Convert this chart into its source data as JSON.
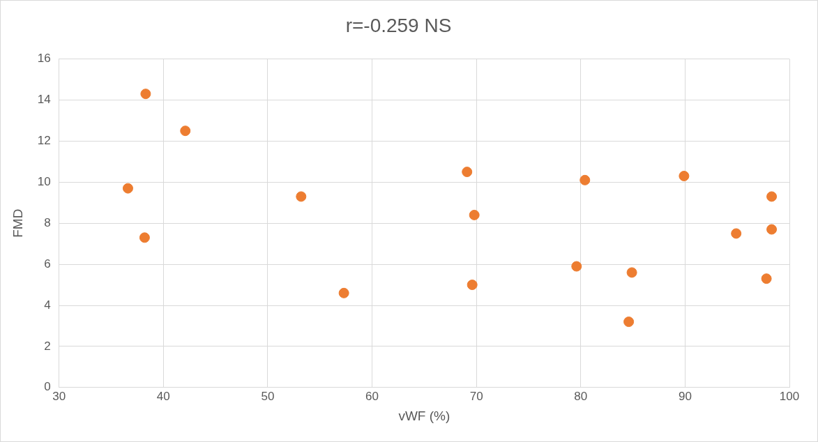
{
  "chart_data": {
    "type": "scatter",
    "title": "r=-0.259 NS",
    "xlabel": "vWF (%)",
    "ylabel": "FMD",
    "x": [
      38.3,
      42.1,
      36.6,
      38.2,
      53.2,
      57.3,
      69.1,
      69.8,
      69.6,
      79.6,
      80.4,
      84.9,
      84.6,
      89.9,
      94.9,
      98.3,
      98.3,
      97.8
    ],
    "series": [
      {
        "color": "#ed7d31",
        "values": [
          14.3,
          12.5,
          9.7,
          7.3,
          9.3,
          4.6,
          10.5,
          8.4,
          5.0,
          5.9,
          10.1,
          5.6,
          3.2,
          10.3,
          7.5,
          9.3,
          7.7,
          5.3
        ]
      }
    ],
    "xlim": [
      30,
      100
    ],
    "xticks": [
      30,
      40,
      50,
      60,
      70,
      80,
      90,
      100
    ],
    "ylim": [
      0,
      16
    ],
    "yticks": [
      0,
      2,
      4,
      6,
      8,
      10,
      12,
      14,
      16
    ],
    "grid": true,
    "marker": "circle",
    "legend": false
  }
}
